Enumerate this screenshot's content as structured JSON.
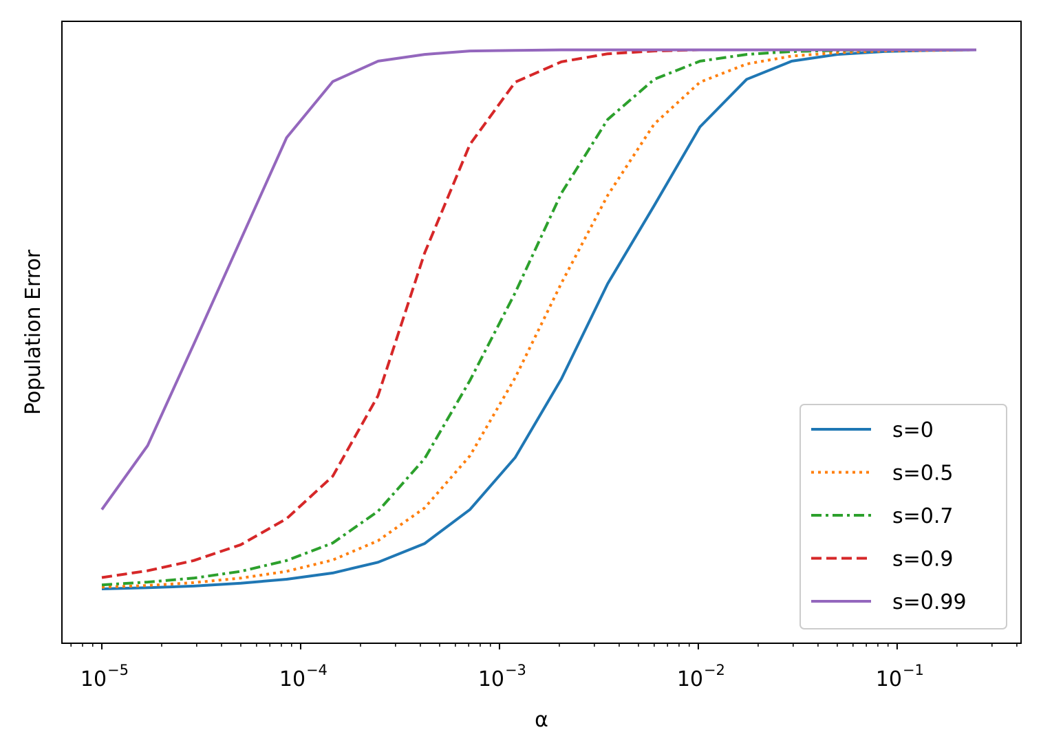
{
  "chart_data": {
    "type": "line",
    "title": "",
    "xlabel": "α",
    "ylabel": "Population Error",
    "xscale": "log",
    "xlim": [
      6.3e-06,
      0.42
    ],
    "ylim": [
      0,
      1
    ],
    "yticks_shown": false,
    "grid": false,
    "legend_position": "lower-right",
    "xticks": [
      {
        "value": 1e-05,
        "base": "10",
        "exp": "−5"
      },
      {
        "value": 0.0001,
        "base": "10",
        "exp": "−4"
      },
      {
        "value": 0.001,
        "base": "10",
        "exp": "−3"
      },
      {
        "value": 0.01,
        "base": "10",
        "exp": "−2"
      },
      {
        "value": 0.1,
        "base": "10",
        "exp": "−1"
      }
    ],
    "x": [
      1e-05,
      1.7e-05,
      2.9e-05,
      5e-05,
      8.5e-05,
      0.000145,
      0.000245,
      0.00042,
      0.00071,
      0.0012,
      0.00205,
      0.0035,
      0.006,
      0.0102,
      0.0175,
      0.0295,
      0.05,
      0.086,
      0.147,
      0.25
    ],
    "series": [
      {
        "name": "s=0",
        "color": "#1f77b4",
        "dash": "solid",
        "values": [
          0.045,
          0.047,
          0.05,
          0.055,
          0.062,
          0.073,
          0.092,
          0.125,
          0.185,
          0.277,
          0.416,
          0.584,
          0.722,
          0.861,
          0.945,
          0.977,
          0.989,
          0.994,
          0.996,
          0.997
        ]
      },
      {
        "name": "s=0.5",
        "color": "#ff7f0e",
        "dash": "dotted",
        "values": [
          0.048,
          0.051,
          0.056,
          0.064,
          0.076,
          0.096,
          0.13,
          0.188,
          0.28,
          0.418,
          0.585,
          0.74,
          0.866,
          0.94,
          0.972,
          0.986,
          0.992,
          0.995,
          0.996,
          0.997
        ]
      },
      {
        "name": "s=0.7",
        "color": "#2ca02c",
        "dash": "dashdot",
        "values": [
          0.052,
          0.057,
          0.064,
          0.076,
          0.095,
          0.126,
          0.182,
          0.275,
          0.413,
          0.568,
          0.744,
          0.874,
          0.945,
          0.977,
          0.989,
          0.994,
          0.996,
          0.997,
          0.997,
          0.997
        ]
      },
      {
        "name": "s=0.9",
        "color": "#d62728",
        "dash": "dashed",
        "values": [
          0.065,
          0.077,
          0.095,
          0.123,
          0.169,
          0.244,
          0.386,
          0.638,
          0.83,
          0.94,
          0.976,
          0.99,
          0.995,
          0.997,
          0.997,
          0.997,
          0.997,
          0.997,
          0.997,
          0.997
        ]
      },
      {
        "name": "s=0.99",
        "color": "#9467bd",
        "dash": "solid",
        "values": [
          0.185,
          0.298,
          0.477,
          0.662,
          0.842,
          0.941,
          0.977,
          0.989,
          0.995,
          0.996,
          0.997,
          0.997,
          0.997,
          0.997,
          0.997,
          0.997,
          0.997,
          0.997,
          0.997,
          0.997
        ]
      }
    ]
  }
}
